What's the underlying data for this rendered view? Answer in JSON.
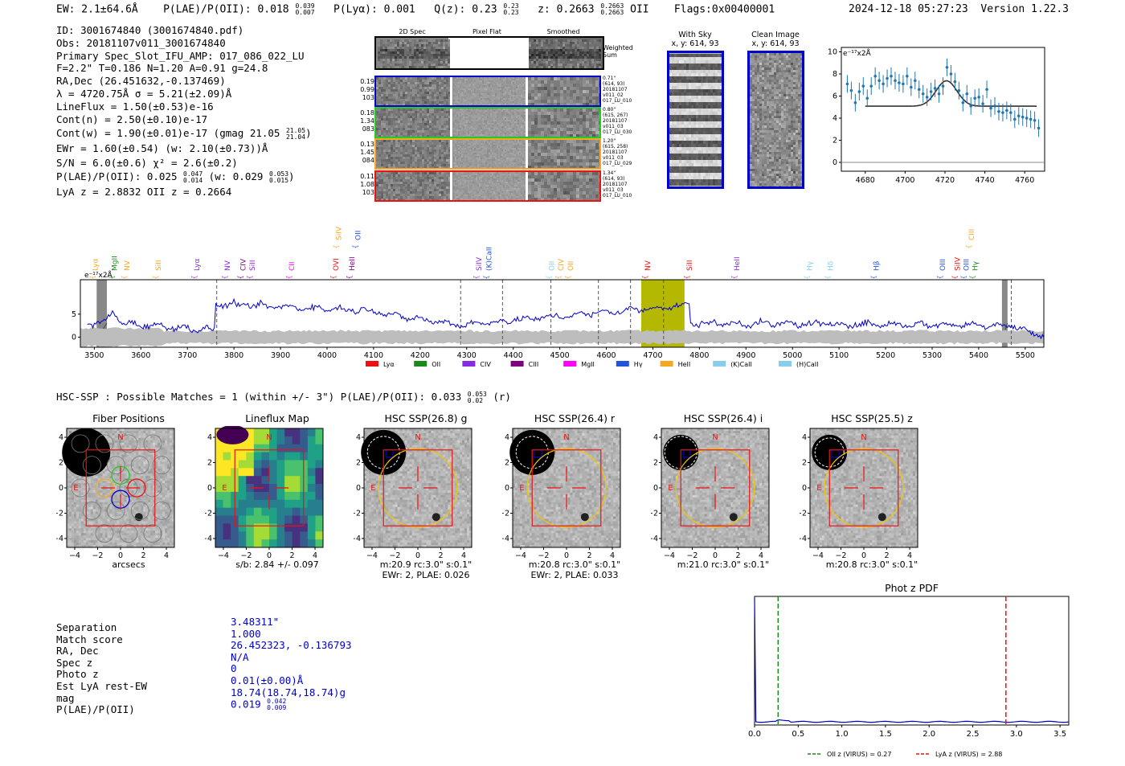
{
  "header": {
    "ew": "EW: 2.1±64.6Å",
    "plae": "P(LAE)/P(OII): 0.018",
    "plae_hi": "0.039",
    "plae_lo": "0.007",
    "plya": "P(Lyα): 0.001",
    "qz": "Q(z): 0.23",
    "qz_hi": "0.23",
    "qz_lo": "0.23",
    "z": "z: 0.2663",
    "z_hi": "0.2663",
    "z_lo": "0.2663",
    "z_line": "OII",
    "flags": "Flags:0x00400001",
    "datetime": "2024-12-18 05:27:23",
    "version": "Version 1.22.3"
  },
  "info": {
    "lines": [
      "ID: 3001674840 (3001674840.pdf)",
      "Obs: 20181107v011_3001674840",
      "Primary Spec_Slot_IFU_AMP: 017_086_022_LU",
      "F=2.2\"  T=0.186  N=1.20  A=0.91  g=24.8",
      "RA,Dec (26.451632,-0.137469)",
      "λ = 4720.75Å  σ = 5.21(±2.09)Å",
      "LineFlux = 1.50(±0.53)e-16",
      "Cont(n) = 2.50(±0.10)e-17"
    ],
    "contw": "Cont(w) = 1.90(±0.01)e-17 (gmag 21.05",
    "contw_hi": "21.05",
    "contw_lo": "21.04",
    "ewr": "EWr = 1.60(±0.54) (w: 2.10(±0.73))Å",
    "sn": "S/N = 6.0(±0.6)  χ² = 2.6(±0.2)",
    "plae2": "P(LAE)/P(OII): 0.025",
    "plae2_hi": "0.047",
    "plae2_lo": "0.014",
    "plae2_w": "(w: 0.029",
    "plae2_w_hi": "0.053",
    "plae2_w_lo": "0.015",
    "lyaz": "LyA z = 2.8832  OII z = 0.2664"
  },
  "cutouts": {
    "col_headers": [
      "2D Spec",
      "Pixel Flat",
      "Smoothed"
    ],
    "weighted_sum": "Weighted Sum",
    "rows": [
      {
        "left": [
          "0.19",
          "0.99",
          "103"
        ],
        "right": [
          "0.71\"",
          "(614, 93)",
          "20181107",
          "v011_02",
          "017_LU_010"
        ],
        "color": "#0000cc"
      },
      {
        "left": [
          "0.18",
          "1.34",
          "083"
        ],
        "right": [
          "0.80\"",
          "(615, 267)",
          "20181107",
          "v011_03",
          "017_LU_030"
        ],
        "color": "#22cc22"
      },
      {
        "left": [
          "0.13",
          "1.45",
          "084"
        ],
        "right": [
          "1.20\"",
          "(615, 258)",
          "20181107",
          "v011_03",
          "017_LU_029"
        ],
        "color": "#f5a623"
      },
      {
        "left": [
          "0.11",
          "1.08",
          "103"
        ],
        "right": [
          "1.34\"",
          "(614, 93)",
          "20181107",
          "v011_03",
          "017_LU_010"
        ],
        "color": "#ee1111"
      }
    ],
    "with_sky_title": "With Sky",
    "with_sky_xy": "x, y: 614, 93",
    "clean_title": "Clean Image",
    "clean_xy": "x, y: 614, 93"
  },
  "colors": {
    "lya": "#ee1111",
    "oii": "#1a8a1a",
    "civ": "#8a2be2",
    "ciii": "#800080",
    "mgii": "#ff00ff",
    "hgamma": "#2255dd",
    "heii": "#f5a623",
    "kcaii": "#87ceeb",
    "hcaii": "#87ceeb",
    "spectrum": "#0000cc",
    "fit_point": "#1f77b4",
    "fit_model": "#333333"
  },
  "chart_data": [
    {
      "id": "line_fit",
      "type": "scatter",
      "title": "",
      "ylabel": "e⁻¹⁷x2Å",
      "xlim": [
        4668,
        4770
      ],
      "ylim": [
        -0.8,
        10.4
      ],
      "xticks": [
        4680,
        4700,
        4720,
        4740,
        4760
      ],
      "yticks": [
        0,
        2,
        4,
        6,
        8,
        10
      ],
      "points": {
        "x": [
          4671,
          4673,
          4675,
          4677,
          4679,
          4681,
          4683,
          4685,
          4687,
          4689,
          4691,
          4693,
          4695,
          4697,
          4699,
          4701,
          4703,
          4705,
          4707,
          4709,
          4711,
          4713,
          4715,
          4717,
          4719,
          4721,
          4723,
          4725,
          4727,
          4729,
          4731,
          4733,
          4735,
          4737,
          4739,
          4741,
          4743,
          4745,
          4747,
          4749,
          4751,
          4753,
          4755,
          4757,
          4759,
          4761,
          4763,
          4765,
          4767
        ],
        "y": [
          7.1,
          6.5,
          5.4,
          6.4,
          6.9,
          5.8,
          6.9,
          7.8,
          7.4,
          7.1,
          7.6,
          7.8,
          7.4,
          7.2,
          7.1,
          7.8,
          6.8,
          7.4,
          6.6,
          6.2,
          5.9,
          6.4,
          6.7,
          6.2,
          6.9,
          8.6,
          8.0,
          7.3,
          6.5,
          5.4,
          6.2,
          5.1,
          5.8,
          5.9,
          5.3,
          6.6,
          4.9,
          5.1,
          4.6,
          4.5,
          4.7,
          4.5,
          3.9,
          4.2,
          4.1,
          4.0,
          3.9,
          3.8,
          3.1
        ]
      },
      "model": {
        "continuum": 5.08,
        "center": 4720.75,
        "sigma": 5.21,
        "amplitude": 2.3
      }
    },
    {
      "id": "full_spectrum",
      "type": "line",
      "ylabel": "e⁻¹⁷x2Å",
      "xlim": [
        3470,
        5540
      ],
      "ylim": [
        -2.2,
        12.5
      ],
      "xticks": [
        3500,
        3600,
        3700,
        3800,
        3900,
        4000,
        4100,
        4200,
        4300,
        4400,
        4500,
        4600,
        4700,
        4800,
        4900,
        5000,
        5100,
        5200,
        5300,
        5400,
        5500
      ],
      "yticks": [
        0,
        5
      ],
      "highlight": {
        "x0": 4675,
        "x1": 4768,
        "color": "#b5b800"
      },
      "dashed_lines": [
        3763,
        4287,
        4377,
        4481,
        4583,
        4652,
        4723,
        5470
      ],
      "masked": [
        [
          3505,
          3527
        ],
        [
          5450,
          5462
        ]
      ],
      "line_labels": [
        {
          "label": "Lyα",
          "x": 3500,
          "color": "#f5a623",
          "level": 0
        },
        {
          "label": "MgII",
          "x": 3542,
          "color": "#1a8a1a",
          "level": 0
        },
        {
          "label": "NV",
          "x": 3568,
          "color": "#f5a623",
          "level": 0
        },
        {
          "label": "SiII",
          "x": 3636,
          "color": "#f5a623",
          "level": 0
        },
        {
          "label": "Lyα",
          "x": 3719,
          "color": "#8a2be2",
          "level": 0
        },
        {
          "label": "NV",
          "x": 3784,
          "color": "#8a2be2",
          "level": 0
        },
        {
          "label": "CIV",
          "x": 3818,
          "color": "#800080",
          "level": 0
        },
        {
          "label": "SiII",
          "x": 3838,
          "color": "#8a2be2",
          "level": 0
        },
        {
          "label": "CII",
          "x": 3922,
          "color": "#ff00ff",
          "level": 0
        },
        {
          "label": "OVI",
          "x": 4017,
          "color": "#ee1111",
          "level": 0
        },
        {
          "label": "HeII",
          "x": 4052,
          "color": "#800080",
          "level": 0
        },
        {
          "label": "SiIV",
          "x": 4023,
          "color": "#f5a623",
          "level": 1
        },
        {
          "label": "OII",
          "x": 4065,
          "color": "#2255dd",
          "level": 1
        },
        {
          "label": "SiIV",
          "x": 4325,
          "color": "#8a2be2",
          "level": 0
        },
        {
          "label": "(K)CaII",
          "x": 4346,
          "color": "#2255dd",
          "level": 0
        },
        {
          "label": "OII",
          "x": 4481,
          "color": "#87ceeb",
          "level": 0
        },
        {
          "label": "CIV",
          "x": 4501,
          "color": "#f5a623",
          "level": 0
        },
        {
          "label": "OII",
          "x": 4521,
          "color": "#f5a623",
          "level": 0
        },
        {
          "label": "NV",
          "x": 4687,
          "color": "#ee1111",
          "level": 0
        },
        {
          "label": "SiII",
          "x": 4777,
          "color": "#ee1111",
          "level": 0
        },
        {
          "label": "HeII",
          "x": 4879,
          "color": "#8a2be2",
          "level": 0
        },
        {
          "label": "Hγ",
          "x": 5035,
          "color": "#87ceeb",
          "level": 0
        },
        {
          "label": "Hδ",
          "x": 5080,
          "color": "#87ceeb",
          "level": 0
        },
        {
          "label": "Hβ",
          "x": 5178,
          "color": "#2255dd",
          "level": 0
        },
        {
          "label": "OIII",
          "x": 5321,
          "color": "#2255dd",
          "level": 0
        },
        {
          "label": "SiIV",
          "x": 5353,
          "color": "#ee1111",
          "level": 0
        },
        {
          "label": "OIII",
          "x": 5372,
          "color": "#2255dd",
          "level": 0
        },
        {
          "label": "Hγ",
          "x": 5391,
          "color": "#1a8a1a",
          "level": 0
        },
        {
          "label": "CIII",
          "x": 5383,
          "color": "#f5a623",
          "level": 1
        }
      ],
      "legend": [
        {
          "label": "Lyα",
          "color": "#ee1111"
        },
        {
          "label": "OII",
          "color": "#1a8a1a"
        },
        {
          "label": "CIV",
          "color": "#8a2be2"
        },
        {
          "label": "CIII",
          "color": "#800080"
        },
        {
          "label": "MgII",
          "color": "#ff00ff"
        },
        {
          "label": "Hγ",
          "color": "#2255dd"
        },
        {
          "label": "HeII",
          "color": "#f5a623"
        },
        {
          "label": "(K)CaII",
          "color": "#87ceeb"
        },
        {
          "label": "(H)CaII",
          "color": "#87ceeb"
        }
      ]
    },
    {
      "id": "photz_pdf",
      "type": "line",
      "title": "Phot z PDF",
      "xlim": [
        0.0,
        3.6
      ],
      "xticks": [
        0.0,
        0.5,
        1.0,
        1.5,
        2.0,
        2.5,
        3.0,
        3.5
      ],
      "markers": [
        {
          "label": "OII z (VIRUS) = 0.27",
          "x": 0.27,
          "color": "#1a8a1a"
        },
        {
          "label": "LyA z (VIRUS) = 2.88",
          "x": 2.88,
          "color": "#ee1111"
        }
      ]
    }
  ],
  "hsc": {
    "summary_prefix": "HSC-SSP : Possible Matches = 1 (within +/- 3\")  P(LAE)/P(OII): 0.033",
    "summary_hi": "0.053",
    "summary_lo": "0.02",
    "summary_suffix": "(r)",
    "panels": [
      {
        "title": "Fiber Positions",
        "caption1": "arcsecs",
        "caption2": ""
      },
      {
        "title": "Lineflux Map",
        "caption1": "s/b: 2.84 +/- 0.097",
        "caption2": ""
      },
      {
        "title": "HSC SSP(26.8) g",
        "caption1": "m:20.9 rc:3.0\"  s:0.1\"",
        "caption2": "EWr: 2, PLAE: 0.026"
      },
      {
        "title": "HSC SSP(26.4) r",
        "caption1": "m:20.8 rc:3.0\"  s:0.1\"",
        "caption2": "EWr: 2, PLAE: 0.033"
      },
      {
        "title": "HSC SSP(26.4) i",
        "caption1": "m:21.0 rc:3.0\"  s:0.1\"",
        "caption2": ""
      },
      {
        "title": "HSC SSP(25.5) z",
        "caption1": "m:20.8 rc:3.0\"  s:0.1\"",
        "caption2": ""
      }
    ],
    "axis_ticks": [
      "−4",
      "−2",
      "0",
      "2",
      "4"
    ],
    "north": "N",
    "east": "E"
  },
  "match": {
    "labels": [
      "Separation",
      "Match score",
      "RA, Dec",
      "Spec z",
      "Photo z",
      "Est LyA rest-EW",
      "mag",
      "P(LAE)/P(OII)"
    ],
    "values": [
      "3.48311\"",
      "1.000",
      "26.452323, -0.136793",
      "N/A",
      "0",
      "0.01(±0.00)Å",
      "18.74(18.74,18.74)g",
      "0.019"
    ],
    "plae_hi": "0.042",
    "plae_lo": "0.009"
  }
}
